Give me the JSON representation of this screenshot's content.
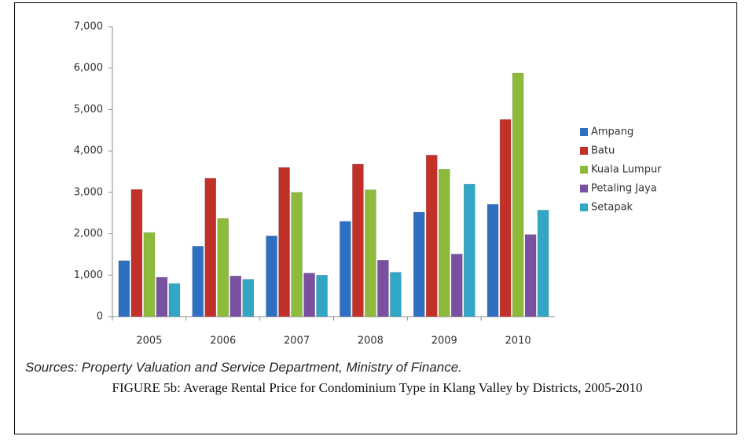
{
  "chart_data": {
    "type": "bar",
    "categories": [
      "2005",
      "2006",
      "2007",
      "2008",
      "2009",
      "2010"
    ],
    "series": [
      {
        "name": "Ampang",
        "color": "#2f6fc1",
        "values": [
          1350,
          1700,
          1950,
          2300,
          2520,
          2710
        ]
      },
      {
        "name": "Batu",
        "color": "#c2302a",
        "values": [
          3070,
          3340,
          3600,
          3680,
          3900,
          4760
        ]
      },
      {
        "name": "Kuala Lumpur",
        "color": "#8dba3b",
        "values": [
          2030,
          2370,
          3000,
          3060,
          3560,
          5880
        ]
      },
      {
        "name": "Petaling Jaya",
        "color": "#7a50a2",
        "values": [
          950,
          980,
          1050,
          1360,
          1510,
          1980
        ]
      },
      {
        "name": "Setapak",
        "color": "#31a7c5",
        "values": [
          800,
          900,
          1000,
          1070,
          3200,
          2570
        ]
      }
    ],
    "ylim": [
      0,
      7000
    ],
    "yticks": [
      0,
      {
        "value": 1000,
        "label": "1,000"
      },
      {
        "value": 2000,
        "label": "2,000"
      },
      {
        "value": 3000,
        "label": "3,000"
      },
      {
        "value": 4000,
        "label": "4,000"
      },
      {
        "value": 5000,
        "label": "5,000"
      },
      {
        "value": 6000,
        "label": "6,000"
      },
      {
        "value": 7000,
        "label": "7,000"
      }
    ],
    "grid": false,
    "legend": "right",
    "source": "Sources: Property Valuation and Service Department, Ministry of Finance.",
    "caption": "FIGURE 5b: Average Rental Price for Condominium Type in Klang Valley by Districts, 2005-2010"
  }
}
